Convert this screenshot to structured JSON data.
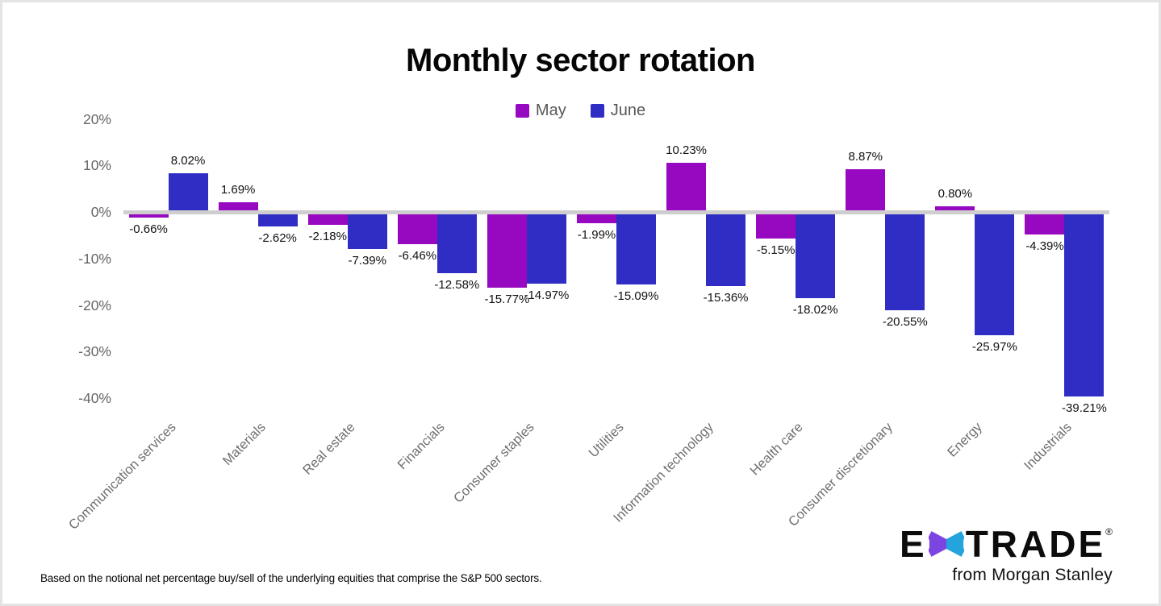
{
  "page": {
    "title": "Monthly sector rotation",
    "footnote": "Based on the notional net percentage buy/sell of the underlying equities that comprise the S&P 500 sectors."
  },
  "colors": {
    "may": "#9709C0",
    "june": "#2F2DC3",
    "zero_line": "#CECECE",
    "axis_text": "#666666",
    "category_text": "#6F6F6F",
    "value_label_text": "#111111",
    "star_purple": "#7C45E1",
    "star_cyan": "#24A3DC"
  },
  "legend": {
    "items": [
      {
        "label": "May",
        "color": "#9709C0"
      },
      {
        "label": "June",
        "color": "#2F2DC3"
      }
    ]
  },
  "chart_data": {
    "type": "bar",
    "title": "Monthly sector rotation",
    "categories": [
      "Communication services",
      "Materials",
      "Real estate",
      "Financials",
      "Consumer staples",
      "Utilities",
      "Information technology",
      "Health care",
      "Consumer discretionary",
      "Energy",
      "Industrials"
    ],
    "series": [
      {
        "name": "May",
        "color": "#9709C0",
        "values": [
          -0.66,
          1.69,
          -2.18,
          -6.46,
          -15.77,
          -1.99,
          10.23,
          -5.15,
          8.87,
          0.8,
          -4.39
        ],
        "labels": [
          "-0.66%",
          "1.69%",
          "-2.18%",
          "-6.46%",
          "-15.77%",
          "-1.99%",
          "10.23%",
          "-5.15%",
          "8.87%",
          "0.80%",
          "-4.39%"
        ]
      },
      {
        "name": "June",
        "color": "#2F2DC3",
        "values": [
          8.02,
          -2.62,
          -7.39,
          -12.58,
          -14.97,
          -15.09,
          -15.36,
          -18.02,
          -20.55,
          -25.97,
          -39.21
        ],
        "labels": [
          "8.02%",
          "-2.62%",
          "-7.39%",
          "-12.58%",
          "-14.97%",
          "-15.09%",
          "-15.36%",
          "-18.02%",
          "-20.55%",
          "-25.97%",
          "-39.21%"
        ]
      }
    ],
    "y_ticks": [
      {
        "label": "20%",
        "value": 20
      },
      {
        "label": "10%",
        "value": 10
      },
      {
        "label": "0%",
        "value": 0
      },
      {
        "label": "-10%",
        "value": -10
      },
      {
        "label": "-20%",
        "value": -20
      },
      {
        "label": "-30%",
        "value": -30
      },
      {
        "label": "-40%",
        "value": -40
      }
    ],
    "ylim": [
      -42,
      22
    ],
    "grid": false,
    "legend_position": "top",
    "value_label_format": "percent_2dp"
  },
  "logo": {
    "brand_e": "E",
    "brand_trade": "TRADE",
    "registered_mark": "®",
    "tagline": "from Morgan Stanley"
  }
}
